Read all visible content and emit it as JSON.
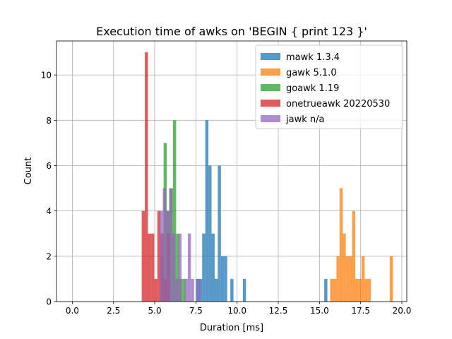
{
  "chart_data": {
    "type": "bar",
    "title": "Execution time of awks on 'BEGIN { print 123 }'",
    "xlabel": "Duration [ms]",
    "ylabel": "Count",
    "xlim": [
      -0.96,
      20.3
    ],
    "ylim": [
      0,
      11.5
    ],
    "xticks": [
      0.0,
      2.5,
      5.0,
      7.5,
      10.0,
      12.5,
      15.0,
      17.5,
      20.0
    ],
    "xtick_labels": [
      "0.0",
      "2.5",
      "5.0",
      "7.5",
      "10.0",
      "12.5",
      "15.0",
      "17.5",
      "20.0"
    ],
    "yticks": [
      0,
      2,
      4,
      6,
      8,
      10
    ],
    "ytick_labels": [
      "0",
      "2",
      "4",
      "6",
      "8",
      "10"
    ],
    "grid": true,
    "legend_position": "top-right",
    "bin_width": 0.19,
    "series": [
      {
        "name": "mawk 1.3.4",
        "color": "#1f77b4",
        "alpha": 0.75,
        "bins": [
          {
            "x": 7.5,
            "count": 1
          },
          {
            "x": 7.69,
            "count": 1
          },
          {
            "x": 7.88,
            "count": 3
          },
          {
            "x": 8.07,
            "count": 8
          },
          {
            "x": 8.26,
            "count": 6
          },
          {
            "x": 8.45,
            "count": 3
          },
          {
            "x": 8.64,
            "count": 1
          },
          {
            "x": 8.83,
            "count": 6
          },
          {
            "x": 9.02,
            "count": 2
          },
          {
            "x": 9.21,
            "count": 2
          },
          {
            "x": 9.59,
            "count": 1
          },
          {
            "x": 10.35,
            "count": 1
          },
          {
            "x": 15.29,
            "count": 1
          }
        ]
      },
      {
        "name": "gawk 5.1.0",
        "color": "#ff7f0e",
        "alpha": 0.75,
        "bins": [
          {
            "x": 15.65,
            "count": 1
          },
          {
            "x": 15.84,
            "count": 1
          },
          {
            "x": 16.03,
            "count": 2
          },
          {
            "x": 16.22,
            "count": 5
          },
          {
            "x": 16.41,
            "count": 3
          },
          {
            "x": 16.6,
            "count": 2
          },
          {
            "x": 16.79,
            "count": 2
          },
          {
            "x": 16.98,
            "count": 4
          },
          {
            "x": 17.17,
            "count": 1
          },
          {
            "x": 17.36,
            "count": 1
          },
          {
            "x": 17.55,
            "count": 2
          },
          {
            "x": 17.74,
            "count": 1
          },
          {
            "x": 17.93,
            "count": 1
          },
          {
            "x": 19.26,
            "count": 2
          }
        ]
      },
      {
        "name": "goawk 1.19",
        "color": "#2ca02c",
        "alpha": 0.75,
        "bins": [
          {
            "x": 5.35,
            "count": 2
          },
          {
            "x": 5.54,
            "count": 7
          },
          {
            "x": 5.73,
            "count": 4
          },
          {
            "x": 5.92,
            "count": 5
          },
          {
            "x": 6.11,
            "count": 8
          },
          {
            "x": 6.3,
            "count": 3
          },
          {
            "x": 6.49,
            "count": 1
          },
          {
            "x": 6.68,
            "count": 1
          }
        ]
      },
      {
        "name": "onetrueawk 20220530",
        "color": "#d62728",
        "alpha": 0.75,
        "bins": [
          {
            "x": 4.21,
            "count": 4
          },
          {
            "x": 4.4,
            "count": 11
          },
          {
            "x": 4.59,
            "count": 3
          },
          {
            "x": 4.78,
            "count": 3
          },
          {
            "x": 4.97,
            "count": 1
          },
          {
            "x": 5.16,
            "count": 4
          },
          {
            "x": 5.35,
            "count": 3
          },
          {
            "x": 5.54,
            "count": 1
          },
          {
            "x": 5.73,
            "count": 3
          }
        ]
      },
      {
        "name": "jawk n/a",
        "color": "#9467bd",
        "alpha": 0.75,
        "bins": [
          {
            "x": 5.3,
            "count": 4
          },
          {
            "x": 5.49,
            "count": 5
          },
          {
            "x": 5.68,
            "count": 4
          },
          {
            "x": 5.87,
            "count": 5
          },
          {
            "x": 6.06,
            "count": 3
          },
          {
            "x": 6.25,
            "count": 1
          },
          {
            "x": 6.44,
            "count": 3
          },
          {
            "x": 6.82,
            "count": 1
          },
          {
            "x": 7.01,
            "count": 3
          },
          {
            "x": 7.2,
            "count": 1
          },
          {
            "x": 7.58,
            "count": 1
          }
        ]
      }
    ]
  }
}
